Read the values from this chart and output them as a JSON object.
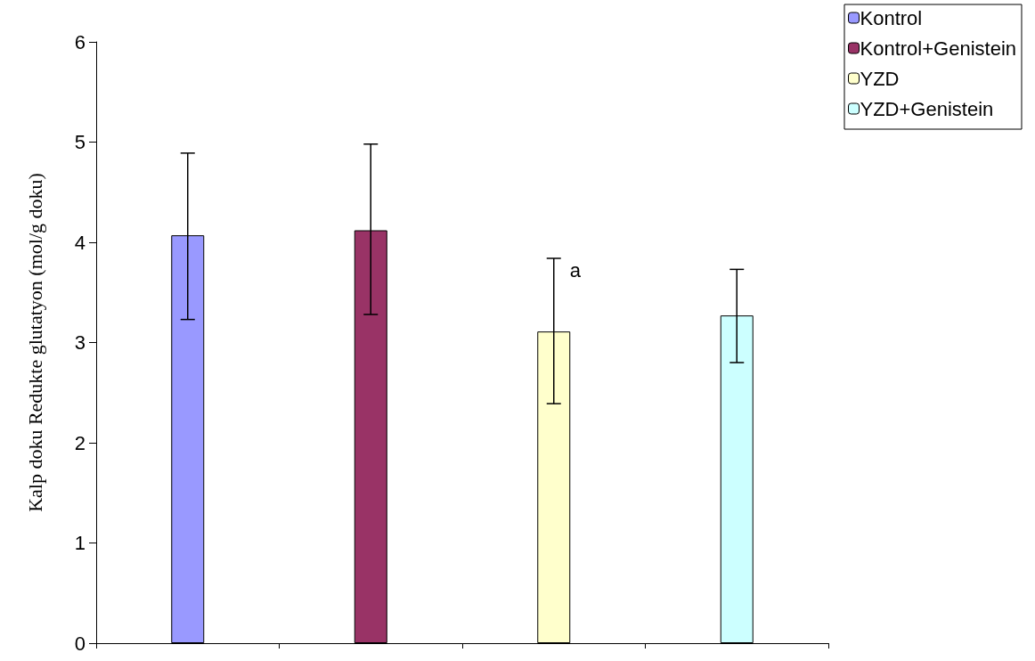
{
  "chart_data": {
    "type": "bar",
    "ylabel": "Kalp doku Redukte glutatyon (mol/g doku)",
    "categories": [
      null,
      null,
      null,
      null
    ],
    "series": [
      {
        "name": "Kontrol",
        "color": "#9999ff",
        "values": [
          4.07,
          null,
          null,
          null
        ],
        "errors": [
          [
            3.23,
            4.89
          ],
          null,
          null,
          null
        ]
      },
      {
        "name": "Kontrol+Genistein",
        "color": "#993366",
        "values": [
          null,
          4.12,
          null,
          null
        ],
        "errors": [
          null,
          [
            3.28,
            4.98
          ],
          null,
          null
        ]
      },
      {
        "name": "YZD",
        "color": "#ffffcc",
        "values": [
          null,
          null,
          3.11,
          null
        ],
        "errors": [
          null,
          null,
          [
            2.39,
            3.84
          ],
          null
        ],
        "value_labels": [
          null,
          null,
          "a",
          null
        ]
      },
      {
        "name": "YZD+Genistein",
        "color": "#ccffff",
        "values": [
          null,
          null,
          null,
          3.27
        ],
        "errors": [
          null,
          null,
          null,
          [
            2.8,
            3.73
          ]
        ]
      }
    ],
    "ylim": [
      0,
      6
    ],
    "yticks": [
      0,
      1,
      2,
      3,
      4,
      5,
      6
    ],
    "grid": false,
    "legend": "top right"
  }
}
